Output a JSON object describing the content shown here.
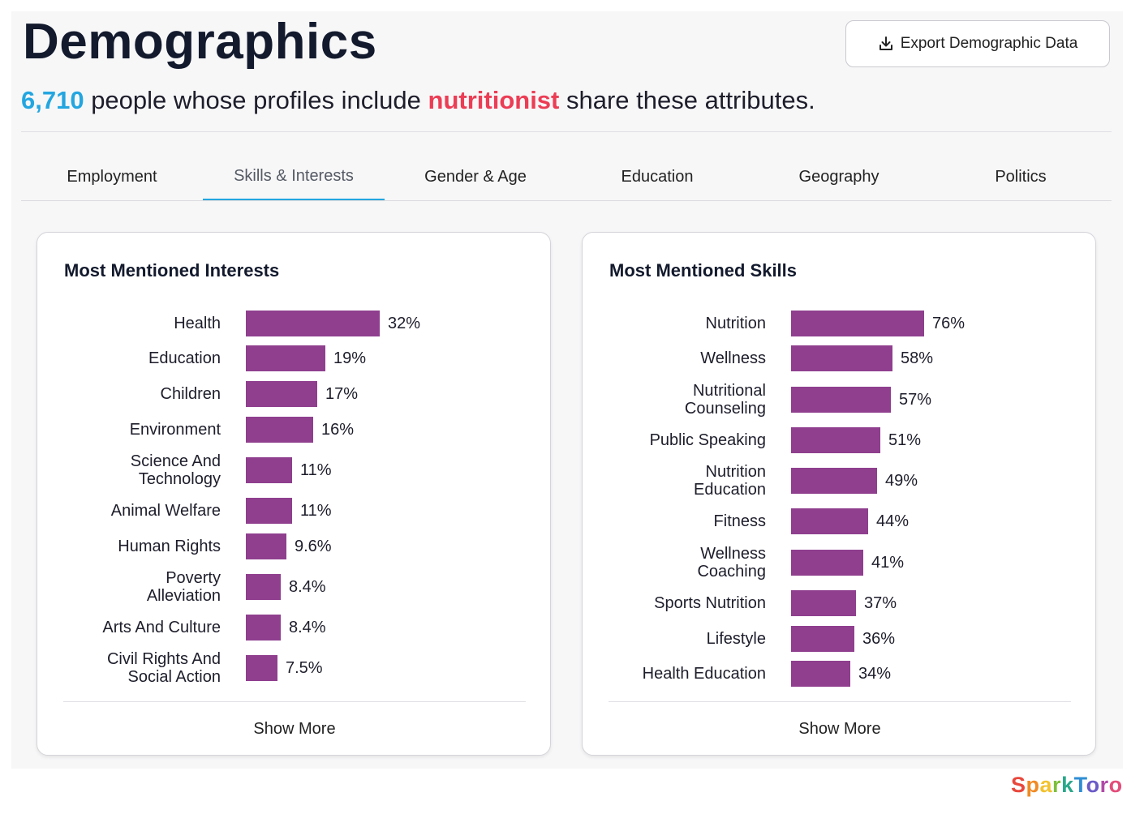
{
  "page": {
    "title": "Demographics",
    "export_label": "Export Demographic Data",
    "subtitle": {
      "count": "6,710",
      "before_keyword": " people whose profiles include ",
      "keyword": "nutritionist",
      "after_keyword": " share these attributes."
    }
  },
  "tabs": [
    {
      "label": "Employment",
      "active": false
    },
    {
      "label": "Skills & Interests",
      "active": true
    },
    {
      "label": "Gender & Age",
      "active": false
    },
    {
      "label": "Education",
      "active": false
    },
    {
      "label": "Geography",
      "active": false
    },
    {
      "label": "Politics",
      "active": false
    }
  ],
  "chart_data": [
    {
      "type": "bar",
      "orientation": "horizontal",
      "title": "Most Mentioned Interests",
      "categories": [
        "Health",
        "Education",
        "Children",
        "Environment",
        "Science And Technology",
        "Animal Welfare",
        "Human Rights",
        "Poverty Alleviation",
        "Arts And Culture",
        "Civil Rights And Social Action"
      ],
      "values": [
        32,
        19,
        17,
        16,
        11,
        11,
        9.6,
        8.4,
        8.4,
        7.5
      ],
      "value_labels": [
        "32%",
        "19%",
        "17%",
        "16%",
        "11%",
        "11%",
        "9.6%",
        "8.4%",
        "8.4%",
        "7.5%"
      ],
      "unit": "%",
      "show_more_label": "Show More"
    },
    {
      "type": "bar",
      "orientation": "horizontal",
      "title": "Most Mentioned Skills",
      "categories": [
        "Nutrition",
        "Wellness",
        "Nutritional Counseling",
        "Public Speaking",
        "Nutrition Education",
        "Fitness",
        "Wellness Coaching",
        "Sports Nutrition",
        "Lifestyle",
        "Health Education"
      ],
      "values": [
        76,
        58,
        57,
        51,
        49,
        44,
        41,
        37,
        36,
        34
      ],
      "value_labels": [
        "76%",
        "58%",
        "57%",
        "51%",
        "49%",
        "44%",
        "41%",
        "37%",
        "36%",
        "34%"
      ],
      "unit": "%",
      "show_more_label": "Show More"
    }
  ],
  "colors": {
    "bar": "#8f3f8e",
    "count_accent": "#23a6e0",
    "keyword_accent": "#ec3d55",
    "tab_underline": "#23a6e0"
  },
  "brand": {
    "name": "SparkToro",
    "letter_colors": [
      "#e8473c",
      "#f08a24",
      "#f2c230",
      "#7cbf3b",
      "#2aa88a",
      "#2f8ed4",
      "#6a5bc7",
      "#b04aa8",
      "#e34d7b"
    ]
  }
}
